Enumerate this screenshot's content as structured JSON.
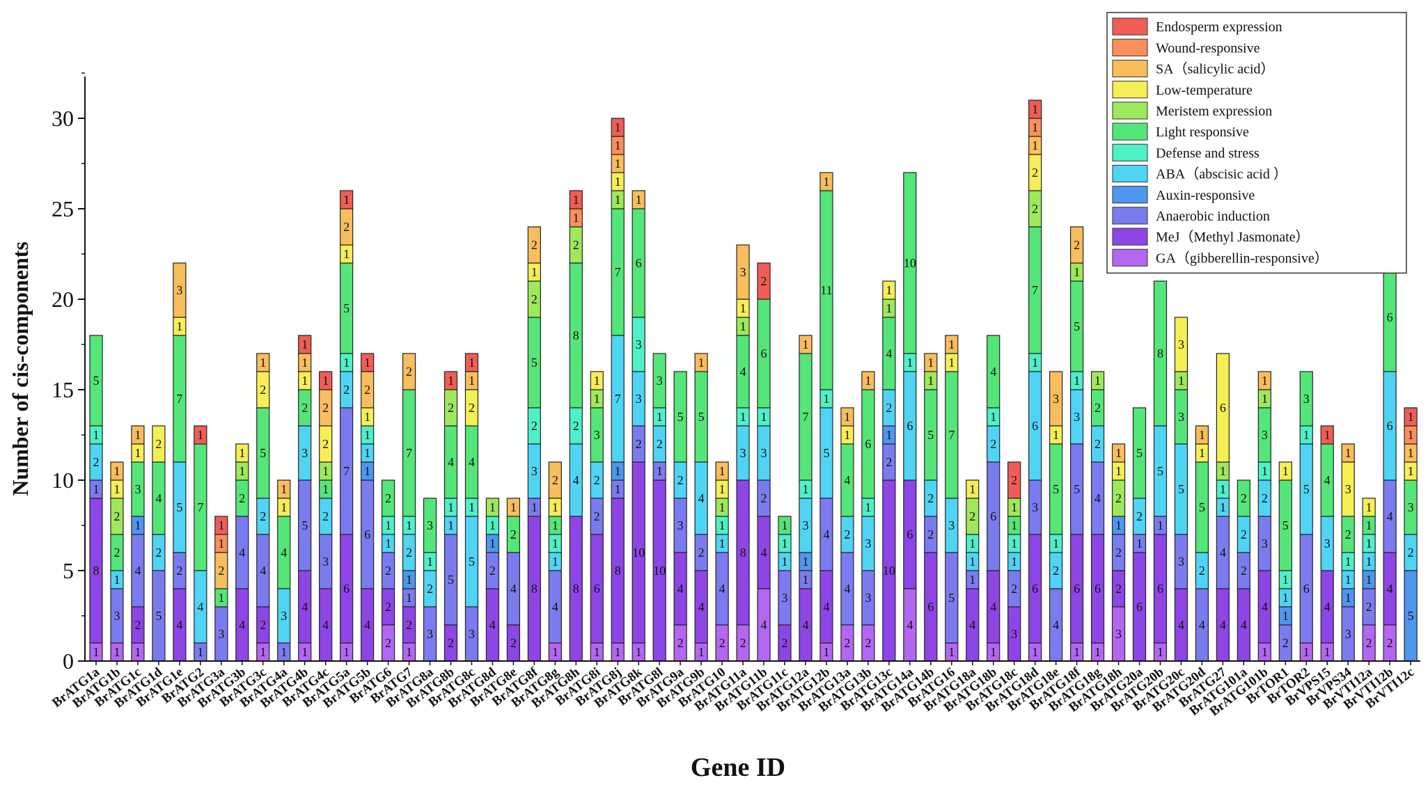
{
  "chart_data": {
    "type": "bar",
    "stacked": true,
    "xlabel": "Gene ID",
    "ylabel": "Number of cis-components",
    "ylim": [
      0,
      32
    ],
    "yticks": [
      0,
      5,
      10,
      15,
      20,
      25,
      30
    ],
    "grid": false,
    "legend_position": "top-right",
    "categories": [
      "BrATG1a",
      "BrATG1b",
      "BrATG1c",
      "BrATG1d",
      "BrATG1e",
      "BrATG2",
      "BrATG3a",
      "BrATG3b",
      "BrATG3c",
      "BrATG4a",
      "BrATG4b",
      "BrATG4c",
      "BrATG5a",
      "BrATG5b",
      "BrATG6",
      "BrATG7",
      "BrATG8a",
      "BrATG8b",
      "BrATG8c",
      "BrATG8d",
      "BrATG8e",
      "BrATG8f",
      "BrATG8g",
      "BrATG8h",
      "BrATG8i",
      "BrATG8j",
      "BrATG8k",
      "BrATG8l",
      "BrATG9a",
      "BrATG9b",
      "BrATG10",
      "BrATG11a",
      "BrATG11b",
      "BrATG11c",
      "BrATG12a",
      "BrATG12b",
      "BrATG13a",
      "BrATG13b",
      "BrATG13c",
      "BrATG14a",
      "BrATG14b",
      "BrATG16",
      "BrATG18a",
      "BrATG18b",
      "BrATG18c",
      "BrATG18d",
      "BrATG18e",
      "BrATG18f",
      "BrATG18g",
      "BrATG18h",
      "BrATG20a",
      "BrATG20b",
      "BrATG20c",
      "BrATG20d",
      "BrATG27",
      "BrATG101a",
      "BrATG101b",
      "BrTOR1",
      "BrTOR2",
      "BrVPS15",
      "BrVPS34",
      "BrVTI12a",
      "BrVTI12b",
      "BrVTI12c"
    ],
    "series": [
      {
        "name": "GA（gibberellin-responsive）",
        "color": "#b366f2",
        "values": [
          1,
          1,
          1,
          0,
          0,
          0,
          0,
          0,
          1,
          0,
          1,
          0,
          1,
          0,
          2,
          1,
          0,
          0,
          0,
          0,
          0,
          0,
          1,
          0,
          1,
          1,
          1,
          0,
          2,
          1,
          2,
          2,
          4,
          0,
          0,
          1,
          2,
          2,
          0,
          4,
          0,
          1,
          0,
          1,
          0,
          1,
          0,
          1,
          1,
          3,
          0,
          1,
          0,
          0,
          0,
          0,
          1,
          0,
          1,
          1,
          0,
          2,
          2,
          0
        ]
      },
      {
        "name": "MeJ（Methyl Jasmonate）",
        "color": "#8d45e6",
        "values": [
          8,
          0,
          2,
          0,
          4,
          0,
          0,
          4,
          2,
          0,
          4,
          4,
          6,
          4,
          2,
          2,
          0,
          2,
          0,
          4,
          2,
          8,
          0,
          8,
          6,
          8,
          10,
          10,
          4,
          4,
          0,
          8,
          4,
          2,
          4,
          4,
          0,
          0,
          10,
          6,
          6,
          0,
          4,
          4,
          3,
          6,
          0,
          6,
          6,
          2,
          6,
          6,
          4,
          0,
          4,
          4,
          4,
          0,
          0,
          4,
          0,
          0,
          4,
          0
        ]
      },
      {
        "name": "Anaerobic induction",
        "color": "#7b7bf0",
        "values": [
          1,
          3,
          4,
          5,
          2,
          1,
          3,
          4,
          4,
          1,
          5,
          3,
          7,
          6,
          2,
          1,
          3,
          5,
          3,
          2,
          4,
          1,
          4,
          0,
          2,
          1,
          2,
          1,
          3,
          2,
          4,
          0,
          2,
          3,
          1,
          4,
          4,
          3,
          2,
          0,
          2,
          5,
          1,
          6,
          2,
          3,
          4,
          5,
          4,
          2,
          1,
          1,
          3,
          4,
          4,
          2,
          3,
          2,
          6,
          0,
          3,
          2,
          4,
          0
        ]
      },
      {
        "name": "Auxin-responsive",
        "color": "#4e96ef",
        "values": [
          0,
          0,
          1,
          0,
          0,
          0,
          0,
          0,
          0,
          0,
          0,
          0,
          0,
          1,
          0,
          1,
          0,
          0,
          0,
          1,
          0,
          0,
          0,
          0,
          0,
          1,
          0,
          0,
          0,
          0,
          0,
          0,
          0,
          0,
          1,
          0,
          0,
          0,
          1,
          0,
          0,
          0,
          0,
          0,
          0,
          0,
          0,
          0,
          0,
          1,
          0,
          0,
          0,
          0,
          0,
          0,
          0,
          1,
          0,
          0,
          1,
          1,
          0,
          5
        ]
      },
      {
        "name": "ABA（abscisic acid ）",
        "color": "#4fd4f4",
        "values": [
          2,
          1,
          0,
          2,
          5,
          4,
          0,
          0,
          2,
          3,
          3,
          2,
          2,
          1,
          1,
          2,
          2,
          1,
          5,
          0,
          0,
          3,
          1,
          4,
          2,
          7,
          3,
          2,
          2,
          4,
          1,
          3,
          3,
          1,
          3,
          5,
          2,
          3,
          2,
          6,
          2,
          3,
          1,
          2,
          1,
          6,
          2,
          3,
          2,
          0,
          2,
          5,
          5,
          2,
          1,
          2,
          2,
          1,
          5,
          3,
          1,
          1,
          6,
          2
        ]
      },
      {
        "name": "Defense and stress",
        "color": "#4ef0c8",
        "values": [
          1,
          0,
          0,
          0,
          0,
          0,
          0,
          0,
          0,
          0,
          0,
          0,
          1,
          1,
          1,
          1,
          1,
          1,
          1,
          1,
          0,
          2,
          1,
          2,
          0,
          0,
          3,
          1,
          0,
          0,
          1,
          1,
          1,
          1,
          1,
          1,
          0,
          1,
          0,
          1,
          0,
          0,
          1,
          1,
          1,
          1,
          1,
          1,
          0,
          0,
          0,
          0,
          0,
          0,
          1,
          0,
          1,
          1,
          1,
          0,
          1,
          1,
          0,
          0
        ]
      },
      {
        "name": "Light responsive",
        "color": "#54e678",
        "values": [
          5,
          2,
          3,
          4,
          7,
          7,
          1,
          2,
          5,
          4,
          2,
          1,
          5,
          0,
          2,
          7,
          3,
          4,
          4,
          0,
          2,
          5,
          1,
          8,
          3,
          7,
          6,
          3,
          5,
          5,
          0,
          4,
          6,
          1,
          7,
          11,
          4,
          6,
          4,
          10,
          5,
          7,
          0,
          4,
          1,
          7,
          5,
          5,
          2,
          0,
          5,
          8,
          3,
          5,
          0,
          2,
          3,
          5,
          3,
          4,
          2,
          1,
          6,
          3
        ]
      },
      {
        "name": "Meristem expression",
        "color": "#9ee85b",
        "values": [
          0,
          2,
          0,
          0,
          0,
          0,
          0,
          1,
          0,
          0,
          0,
          1,
          0,
          0,
          0,
          0,
          0,
          2,
          0,
          1,
          0,
          2,
          0,
          2,
          1,
          1,
          0,
          0,
          0,
          0,
          1,
          1,
          0,
          0,
          0,
          0,
          0,
          0,
          1,
          0,
          1,
          0,
          2,
          0,
          1,
          2,
          0,
          1,
          1,
          2,
          0,
          0,
          1,
          0,
          1,
          0,
          1,
          0,
          0,
          0,
          0,
          0,
          1,
          0
        ]
      },
      {
        "name": "Low-temperature",
        "color": "#f5ee55",
        "values": [
          0,
          1,
          1,
          2,
          1,
          0,
          0,
          1,
          2,
          1,
          1,
          2,
          1,
          1,
          0,
          0,
          0,
          0,
          2,
          0,
          0,
          1,
          1,
          0,
          1,
          1,
          0,
          0,
          0,
          0,
          1,
          1,
          0,
          0,
          0,
          0,
          1,
          0,
          1,
          0,
          0,
          1,
          1,
          0,
          0,
          2,
          1,
          0,
          0,
          1,
          0,
          0,
          3,
          1,
          6,
          0,
          0,
          1,
          0,
          0,
          3,
          1,
          0,
          1
        ]
      },
      {
        "name": "SA（salicylic acid）",
        "color": "#f8bd5c",
        "values": [
          0,
          1,
          1,
          0,
          3,
          0,
          2,
          0,
          1,
          1,
          1,
          2,
          2,
          2,
          0,
          2,
          0,
          0,
          1,
          0,
          1,
          2,
          2,
          0,
          0,
          1,
          1,
          0,
          0,
          1,
          1,
          3,
          0,
          0,
          1,
          1,
          1,
          1,
          0,
          0,
          1,
          1,
          0,
          0,
          0,
          1,
          3,
          2,
          0,
          1,
          0,
          0,
          0,
          1,
          0,
          0,
          1,
          0,
          0,
          0,
          1,
          0,
          0,
          1
        ]
      },
      {
        "name": "Wound-responsive",
        "color": "#f9905b",
        "values": [
          0,
          0,
          0,
          0,
          0,
          0,
          1,
          0,
          0,
          0,
          0,
          0,
          0,
          0,
          0,
          0,
          0,
          0,
          0,
          0,
          0,
          0,
          0,
          1,
          0,
          1,
          0,
          0,
          0,
          0,
          0,
          0,
          0,
          0,
          0,
          0,
          0,
          0,
          0,
          0,
          0,
          0,
          0,
          0,
          0,
          1,
          0,
          0,
          0,
          0,
          0,
          0,
          0,
          0,
          0,
          0,
          0,
          0,
          0,
          0,
          0,
          0,
          0,
          1
        ]
      },
      {
        "name": "Endosperm expression",
        "color": "#f05d57",
        "values": [
          0,
          0,
          0,
          0,
          0,
          1,
          1,
          0,
          0,
          0,
          1,
          1,
          1,
          1,
          0,
          0,
          0,
          1,
          1,
          0,
          0,
          0,
          0,
          1,
          0,
          1,
          0,
          0,
          0,
          0,
          0,
          0,
          2,
          0,
          0,
          0,
          0,
          0,
          0,
          0,
          0,
          0,
          0,
          0,
          2,
          1,
          0,
          0,
          0,
          0,
          0,
          0,
          0,
          0,
          0,
          0,
          0,
          0,
          0,
          1,
          0,
          0,
          0,
          1
        ]
      }
    ]
  }
}
